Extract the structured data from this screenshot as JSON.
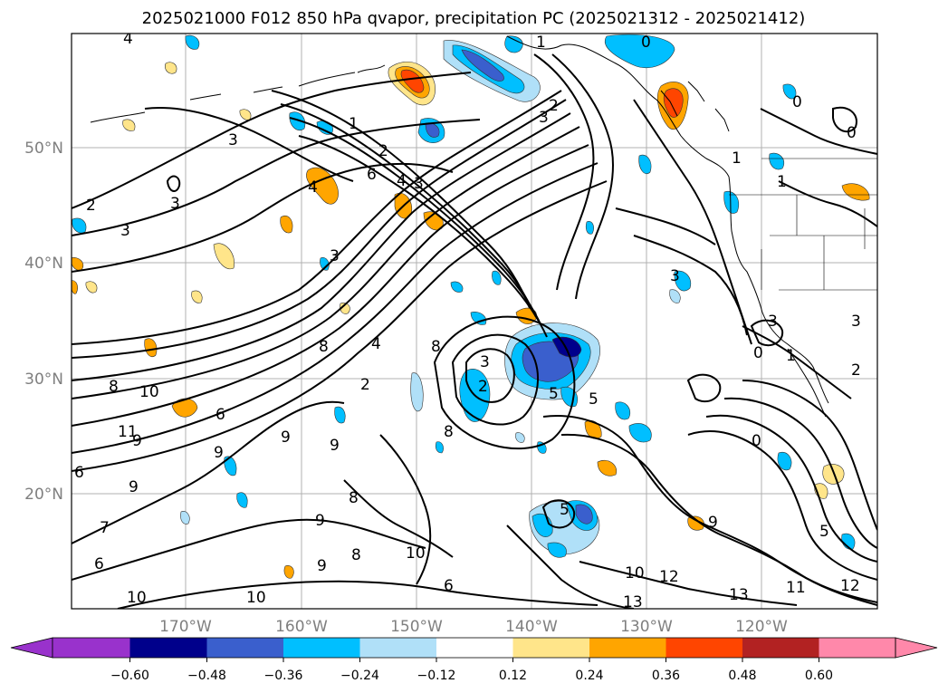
{
  "title": "2025021000 F012 850 hPa qvapor, precipitation PC (2025021312 - 2025021412)",
  "map": {
    "lat_labels": [
      "50°N",
      "40°N",
      "30°N",
      "20°N"
    ],
    "lon_labels": [
      "170°W",
      "160°W",
      "150°W",
      "140°W",
      "130°W",
      "120°W"
    ],
    "contour_labels": [
      "4",
      "0",
      "0",
      "3",
      "1",
      "2",
      "3",
      "2",
      "3",
      "6",
      "4",
      "3",
      "4",
      "3",
      "3",
      "2",
      "1",
      "1",
      "3",
      "0",
      "0",
      "8",
      "4",
      "2",
      "8",
      "3",
      "2",
      "5",
      "5",
      "8",
      "10",
      "11",
      "9",
      "6",
      "9",
      "9",
      "9",
      "8",
      "6",
      "9",
      "9",
      "8",
      "10",
      "7",
      "6",
      "10",
      "9",
      "10",
      "8",
      "6",
      "5",
      "9",
      "10",
      "12",
      "13",
      "13",
      "11",
      "12",
      "5",
      "3",
      "1",
      "0",
      "3",
      "2",
      "1"
    ]
  },
  "colorbar": {
    "ticks": [
      "−0.60",
      "−0.48",
      "−0.36",
      "−0.24",
      "−0.12",
      "0.12",
      "0.24",
      "0.36",
      "0.48",
      "0.60"
    ],
    "colors": [
      "#9932cc",
      "#00008b",
      "#3a5fcd",
      "#00bfff",
      "#b0e0f8",
      "#ffffff",
      "#ffe58a",
      "#ffa500",
      "#ff4500",
      "#b22222",
      "#ff88aa",
      "#ff88aa"
    ]
  }
}
